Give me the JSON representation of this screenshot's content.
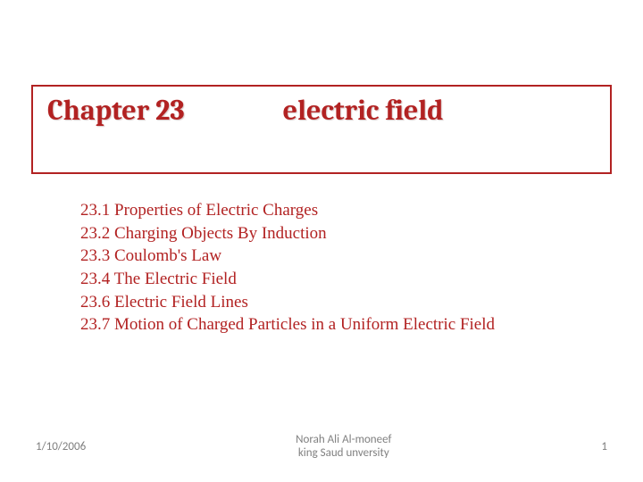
{
  "title": {
    "chapter": "Chapter 23",
    "topic": "electric field",
    "border_color": "#b22222",
    "text_color": "#b22222",
    "font_size": 32,
    "font_weight": "bold"
  },
  "contents": {
    "text_color": "#b22222",
    "font_size": 19,
    "items": [
      "23.1 Properties of Electric Charges",
      "23.2 Charging Objects By Induction",
      "23.3 Coulomb's Law",
      "23.4 The Electric Field",
      "23.6 Electric Field Lines",
      "23.7 Motion of Charged Particles in a Uniform Electric Field"
    ]
  },
  "footer": {
    "date": "1/10/2006",
    "author_line1": "Norah Ali Al-moneef",
    "author_line2": "king Saud unversity",
    "page": "1",
    "text_color": "#808080",
    "font_size": 13
  },
  "background_color": "#ffffff"
}
